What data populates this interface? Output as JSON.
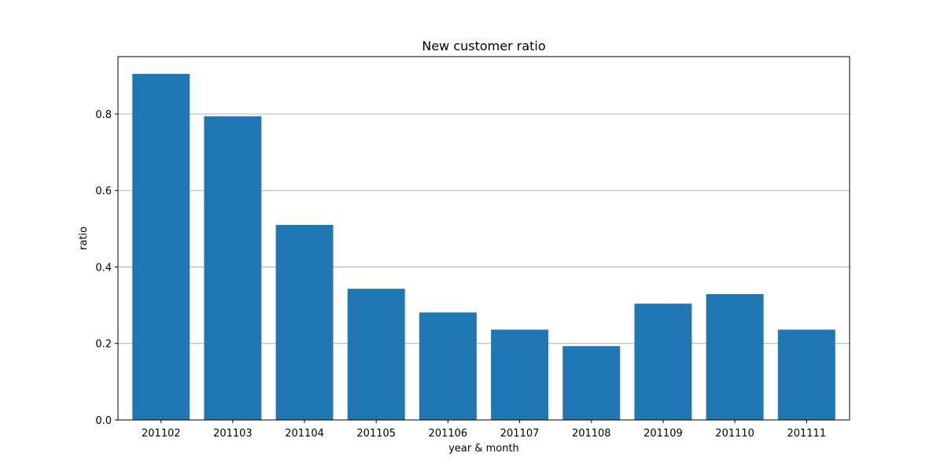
{
  "chart_data": {
    "type": "bar",
    "title": "New customer ratio",
    "xlabel": "year & month",
    "ylabel": "ratio",
    "categories": [
      "201102",
      "201103",
      "201104",
      "201105",
      "201106",
      "201107",
      "201108",
      "201109",
      "201110",
      "201111"
    ],
    "values": [
      0.905,
      0.794,
      0.51,
      0.343,
      0.281,
      0.236,
      0.193,
      0.304,
      0.329,
      0.236
    ],
    "ylim": [
      0,
      0.95
    ],
    "yticks": [
      "0.0",
      "0.2",
      "0.4",
      "0.6",
      "0.8"
    ],
    "grid": "horizontal",
    "legend": "none",
    "bar_color": "#1f77b4",
    "grid_color": "#b0b0b0"
  }
}
